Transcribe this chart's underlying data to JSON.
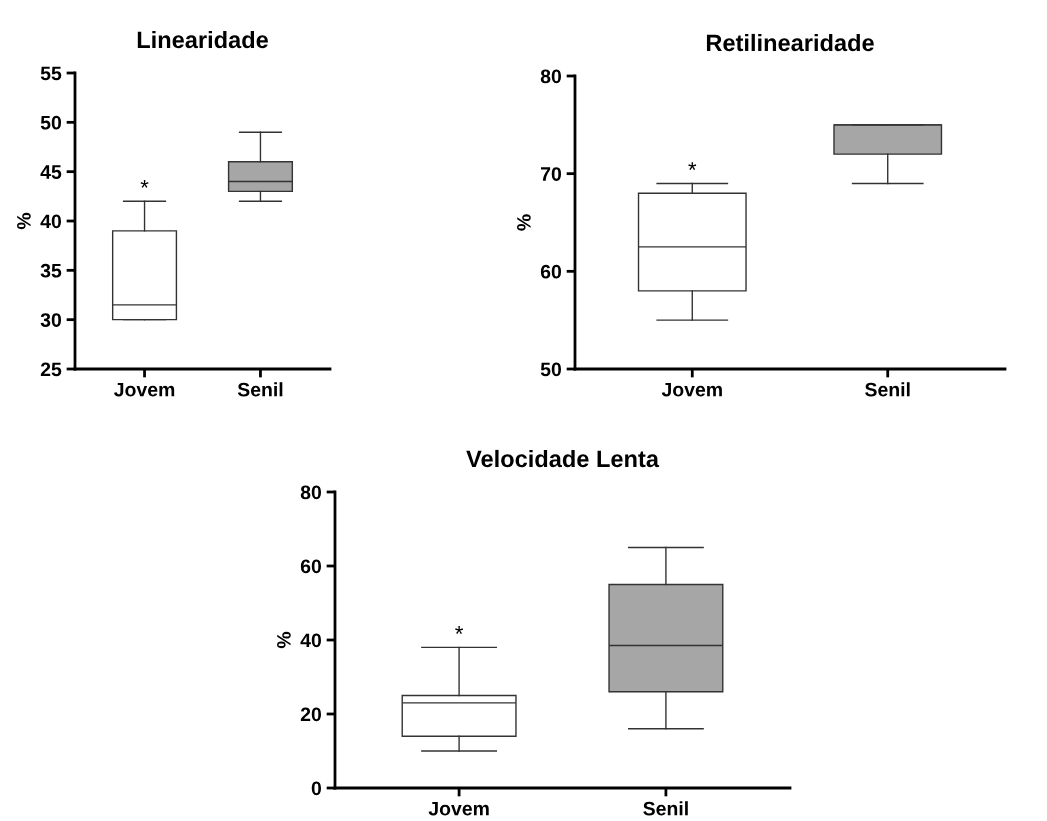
{
  "chart_data": [
    {
      "type": "box",
      "title": "Linearidade",
      "ylabel": "%",
      "categories": [
        "Jovem",
        "Senil"
      ],
      "colors": [
        "#ffffff",
        "#a6a6a6"
      ],
      "boxes": [
        {
          "low": 30,
          "q1": 30,
          "median": 31.5,
          "q3": 39,
          "high": 42
        },
        {
          "low": 42,
          "q1": 43,
          "median": 44,
          "q3": 46,
          "high": 49
        }
      ],
      "ylim": [
        25,
        55
      ],
      "yticks": [
        25,
        30,
        35,
        40,
        45,
        50,
        55
      ],
      "grid": false,
      "legend": false,
      "annotations": [
        {
          "text": "*",
          "x": "Jovem",
          "y": 42
        }
      ]
    },
    {
      "type": "box",
      "title": "Retilinearidade",
      "ylabel": "%",
      "categories": [
        "Jovem",
        "Senil"
      ],
      "colors": [
        "#ffffff",
        "#a6a6a6"
      ],
      "boxes": [
        {
          "low": 55,
          "q1": 58,
          "median": 62.5,
          "q3": 68,
          "high": 69
        },
        {
          "low": 69,
          "q1": 72,
          "median": 75,
          "q3": 75,
          "high": 75
        }
      ],
      "ylim": [
        50,
        80
      ],
      "yticks": [
        50,
        60,
        70,
        80
      ],
      "grid": false,
      "legend": false,
      "annotations": [
        {
          "text": "*",
          "x": "Jovem",
          "y": 69
        }
      ]
    },
    {
      "type": "box",
      "title": "Velocidade Lenta",
      "ylabel": "%",
      "categories": [
        "Jovem",
        "Senil"
      ],
      "colors": [
        "#ffffff",
        "#a6a6a6"
      ],
      "boxes": [
        {
          "low": 10,
          "q1": 14,
          "median": 23,
          "q3": 25,
          "high": 38
        },
        {
          "low": 16,
          "q1": 26,
          "median": 38.5,
          "q3": 55,
          "high": 65
        }
      ],
      "ylim": [
        0,
        80
      ],
      "yticks": [
        0,
        20,
        40,
        60,
        80
      ],
      "grid": false,
      "legend": false,
      "annotations": [
        {
          "text": "*",
          "x": "Jovem",
          "y": 38
        }
      ]
    }
  ]
}
